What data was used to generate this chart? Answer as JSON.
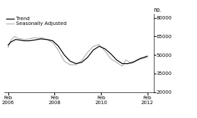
{
  "ylabel_right": "no.",
  "yticks": [
    20000,
    35000,
    50000,
    65000,
    80000
  ],
  "ylim": [
    20000,
    83000
  ],
  "legend_entries": [
    "Trend",
    "Seasonally Adjusted"
  ],
  "trend_color": "#000000",
  "seasonal_color": "#aaaaaa",
  "trend_linewidth": 0.9,
  "seasonal_linewidth": 0.8,
  "background_color": "#ffffff",
  "trend_x": [
    2006.08,
    2006.2,
    2006.4,
    2006.6,
    2006.75,
    2007.0,
    2007.2,
    2007.5,
    2007.75,
    2008.0,
    2008.25,
    2008.5,
    2008.75,
    2009.0,
    2009.25,
    2009.5,
    2009.75,
    2010.0,
    2010.25,
    2010.5,
    2010.75,
    2011.0,
    2011.25,
    2011.5,
    2011.75,
    2012.08
  ],
  "trend_y": [
    58000,
    60500,
    62500,
    62000,
    61500,
    61500,
    62000,
    63000,
    62500,
    61500,
    57000,
    50000,
    45000,
    43000,
    44000,
    48000,
    54000,
    57000,
    55000,
    51000,
    46000,
    43000,
    43000,
    44500,
    47000,
    49000
  ],
  "seasonal_x": [
    2006.08,
    2006.2,
    2006.35,
    2006.5,
    2006.65,
    2006.8,
    2007.0,
    2007.2,
    2007.4,
    2007.55,
    2007.65,
    2007.8,
    2008.0,
    2008.2,
    2008.5,
    2008.75,
    2009.0,
    2009.25,
    2009.5,
    2009.75,
    2010.0,
    2010.12,
    2010.3,
    2010.5,
    2010.75,
    2011.0,
    2011.15,
    2011.4,
    2011.6,
    2011.85,
    2012.08
  ],
  "seasonal_y": [
    56000,
    62000,
    65000,
    63500,
    63000,
    62500,
    63000,
    64000,
    63500,
    64000,
    63000,
    62000,
    60000,
    55000,
    45000,
    42000,
    42000,
    45500,
    52000,
    57000,
    58500,
    56000,
    52000,
    47000,
    44000,
    41000,
    46000,
    43000,
    45000,
    47000,
    48000
  ],
  "xlim_start": 2005.9,
  "xlim_end": 2012.35,
  "xtick_positions": [
    2006.08,
    2008.08,
    2010.08,
    2012.08
  ],
  "xtick_labels": [
    "Feb\n2006",
    "Feb\n2008",
    "Feb\n2010",
    "Feb\n2012"
  ],
  "tick_fontsize": 5.0,
  "legend_fontsize": 5.2,
  "ylabel_fontsize": 5.5
}
